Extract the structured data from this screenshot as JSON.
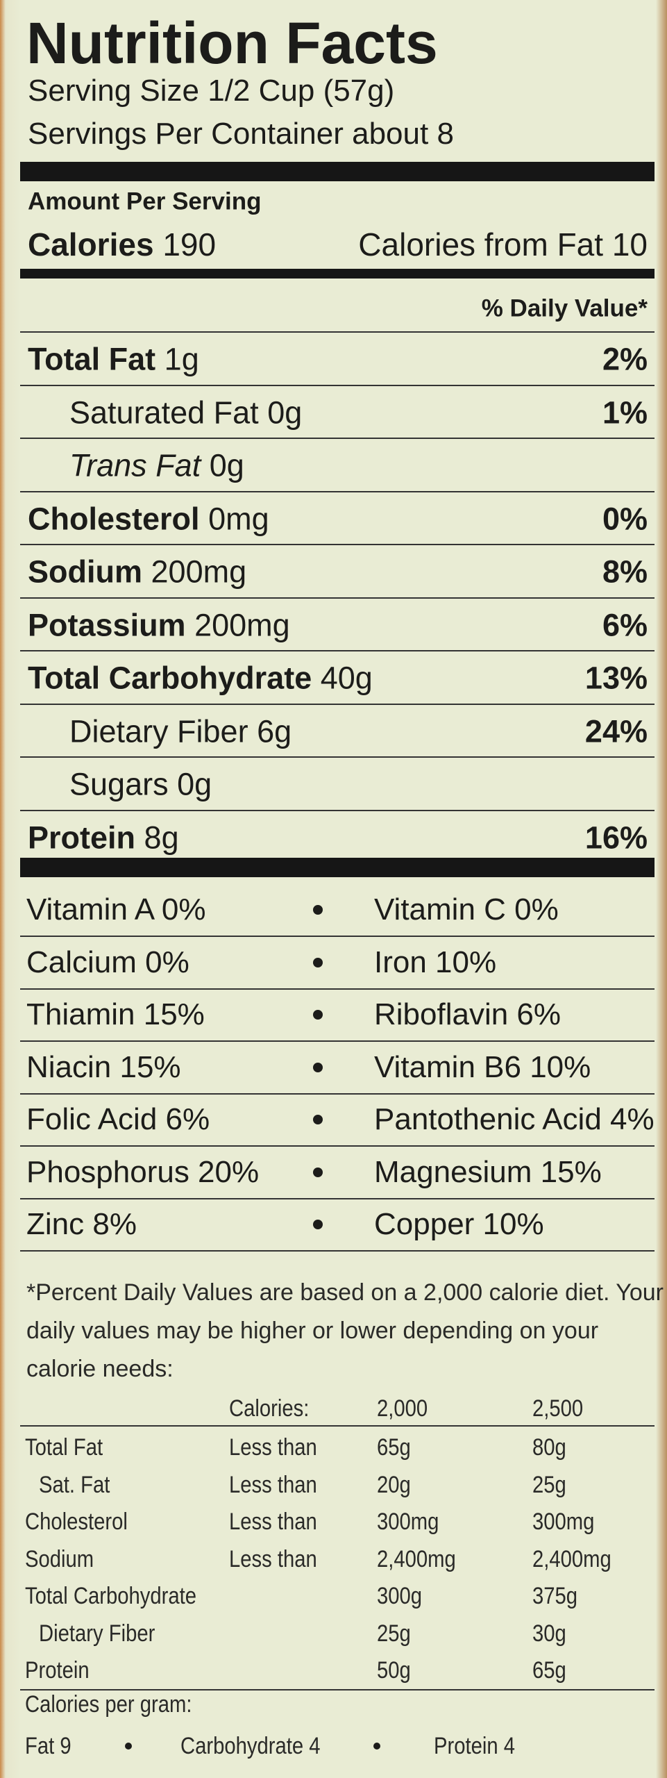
{
  "header": {
    "title": "Nutrition Facts",
    "serving_size": "Serving Size 1/2 Cup (57g)",
    "servings_per_container": "Servings Per Container about 8"
  },
  "amount_per_serving": "Amount Per Serving",
  "calories": {
    "label": "Calories",
    "value": "190",
    "from_fat": "Calories from Fat 10"
  },
  "daily_value_header": "% Daily Value*",
  "nutrients": [
    {
      "name": "Total Fat",
      "amount": "1g",
      "dv": "2%"
    },
    {
      "name": "Saturated Fat",
      "amount": "0g",
      "dv": "1%"
    },
    {
      "name": "Trans Fat",
      "amount": "0g"
    },
    {
      "name": "Cholesterol",
      "amount": "0mg",
      "dv": "0%"
    },
    {
      "name": "Sodium",
      "amount": "200mg",
      "dv": "8%"
    },
    {
      "name": "Potassium",
      "amount": "200mg",
      "dv": "6%"
    },
    {
      "name": "Total Carbohydrate",
      "amount": "40g",
      "dv": "13%"
    },
    {
      "name": "Dietary Fiber",
      "amount": "6g",
      "dv": "24%"
    },
    {
      "name": "Sugars",
      "amount": "0g"
    },
    {
      "name": "Protein",
      "amount": "8g",
      "dv": "16%"
    }
  ],
  "vitamins": [
    [
      "Vitamin A 0%",
      "Vitamin C 0%"
    ],
    [
      "Calcium 0%",
      "Iron 10%"
    ],
    [
      "Thiamin 15%",
      "Riboflavin 6%"
    ],
    [
      "Niacin 15%",
      "Vitamin B6 10%"
    ],
    [
      "Folic Acid 6%",
      "Pantothenic Acid 4%"
    ],
    [
      "Phosphorus 20%",
      "Magnesium 15%"
    ],
    [
      "Zinc 8%",
      "Copper 10%"
    ]
  ],
  "footnote": [
    "*Percent Daily Values are based on a 2,000 calorie diet. Your",
    "daily values may be higher or lower depending on your",
    "calorie needs:"
  ],
  "dv_table": {
    "header": [
      "Calories:",
      "2,000",
      "2,500"
    ],
    "rows": [
      [
        "Total Fat",
        "Less than",
        "65g",
        "80g"
      ],
      [
        "Sat. Fat",
        "Less than",
        "20g",
        "25g"
      ],
      [
        "Cholesterol",
        "Less than",
        "300mg",
        "300mg"
      ],
      [
        "Sodium",
        "Less than",
        "2,400mg",
        "2,400mg"
      ],
      [
        "Total Carbohydrate",
        null,
        "300g",
        "375g"
      ],
      [
        "Dietary Fiber",
        null,
        "25g",
        "30g"
      ],
      [
        "Protein",
        null,
        "50g",
        "65g"
      ]
    ]
  },
  "calories_per_gram": {
    "title": "Calories per gram:",
    "items": [
      "Fat 9",
      "Carbohydrate 4",
      "Protein 4"
    ]
  }
}
